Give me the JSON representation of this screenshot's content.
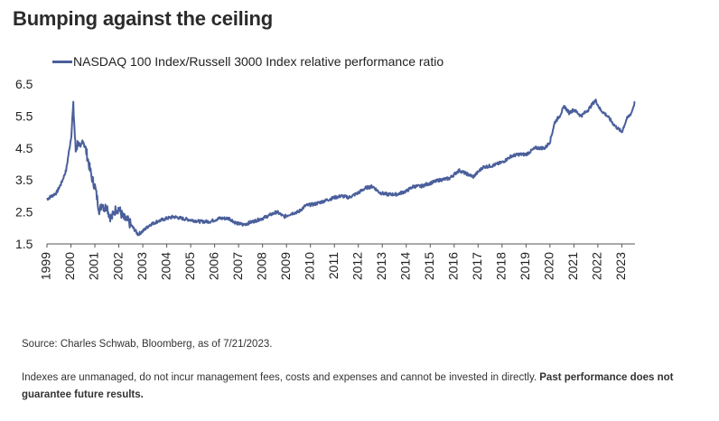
{
  "title": "Bumping against the ceiling",
  "footer": {
    "source": "Source: Charles Schwab, Bloomberg, as of 7/21/2023.",
    "disclaimer": "Indexes are unmanaged, do not incur management fees, costs and expenses and cannot be invested in directly.",
    "disclaimer_bold": "Past performance does not guarantee future results."
  },
  "chart_data": {
    "type": "line",
    "title": "Bumping against the ceiling",
    "xlabel": "",
    "ylabel": "",
    "ylim": [
      1.5,
      6.5
    ],
    "yticks": [
      "6.5",
      "5.5",
      "4.5",
      "3.5",
      "2.5",
      "1.5"
    ],
    "xticks": [
      "1999",
      "2000",
      "2001",
      "2002",
      "2003",
      "2004",
      "2005",
      "2006",
      "2007",
      "2008",
      "2009",
      "2010",
      "2011",
      "2012",
      "2013",
      "2014",
      "2015",
      "2016",
      "2017",
      "2018",
      "2019",
      "2020",
      "2021",
      "2022",
      "2023"
    ],
    "xlim": [
      1999.0,
      2023.55
    ],
    "grid": false,
    "legend_position": "top-left",
    "color": "#4a5f9b",
    "series": [
      {
        "name": "NASDAQ 100 Index/Russell 3000 Index relative performance ratio",
        "x": [
          1999.0,
          1999.2,
          1999.4,
          1999.6,
          1999.8,
          2000.0,
          2000.1,
          2000.15,
          2000.2,
          2000.3,
          2000.4,
          2000.5,
          2000.6,
          2000.7,
          2000.8,
          2000.9,
          2001.0,
          2001.1,
          2001.2,
          2001.3,
          2001.4,
          2001.5,
          2001.6,
          2001.7,
          2001.8,
          2001.9,
          2002.0,
          2002.2,
          2002.4,
          2002.6,
          2002.8,
          2003.0,
          2003.3,
          2003.6,
          2004.0,
          2004.3,
          2004.6,
          2005.0,
          2005.4,
          2005.8,
          2006.2,
          2006.6,
          2006.9,
          2007.2,
          2007.6,
          2008.0,
          2008.3,
          2008.6,
          2008.9,
          2009.2,
          2009.5,
          2009.8,
          2010.2,
          2010.6,
          2011.0,
          2011.3,
          2011.6,
          2012.0,
          2012.3,
          2012.6,
          2012.9,
          2013.2,
          2013.6,
          2014.0,
          2014.3,
          2014.6,
          2015.0,
          2015.4,
          2015.8,
          2016.2,
          2016.5,
          2016.8,
          2017.2,
          2017.6,
          2018.0,
          2018.4,
          2018.7,
          2019.0,
          2019.4,
          2019.8,
          2020.0,
          2020.2,
          2020.4,
          2020.6,
          2020.8,
          2021.0,
          2021.3,
          2021.6,
          2021.9,
          2022.1,
          2022.4,
          2022.7,
          2023.0,
          2023.2,
          2023.4,
          2023.55
        ],
        "y": [
          2.9,
          3.0,
          3.1,
          3.4,
          3.8,
          4.8,
          5.8,
          5.1,
          4.4,
          4.7,
          4.4,
          4.8,
          4.5,
          4.2,
          3.8,
          3.5,
          3.3,
          2.9,
          2.5,
          2.8,
          2.6,
          2.7,
          2.4,
          2.3,
          2.5,
          2.6,
          2.6,
          2.3,
          2.2,
          2.0,
          1.8,
          1.9,
          2.1,
          2.2,
          2.3,
          2.35,
          2.3,
          2.25,
          2.2,
          2.2,
          2.3,
          2.3,
          2.15,
          2.1,
          2.2,
          2.3,
          2.4,
          2.5,
          2.35,
          2.45,
          2.5,
          2.7,
          2.75,
          2.85,
          2.95,
          3.0,
          2.95,
          3.1,
          3.25,
          3.3,
          3.1,
          3.05,
          3.05,
          3.15,
          3.3,
          3.3,
          3.4,
          3.5,
          3.55,
          3.8,
          3.7,
          3.6,
          3.9,
          3.95,
          4.05,
          4.25,
          4.3,
          4.3,
          4.5,
          4.5,
          4.7,
          5.3,
          5.5,
          5.8,
          5.6,
          5.7,
          5.5,
          5.7,
          6.0,
          5.7,
          5.5,
          5.2,
          5.0,
          5.4,
          5.6,
          5.95
        ]
      }
    ]
  }
}
